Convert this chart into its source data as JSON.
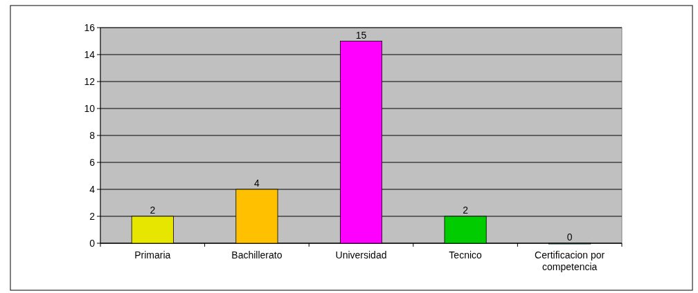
{
  "chart_data": {
    "type": "bar",
    "categories": [
      "Primaria",
      "Bachillerato",
      "Universidad",
      "Tecnico",
      "Certificacion por competencia"
    ],
    "values": [
      2,
      4,
      15,
      2,
      0
    ],
    "colors": [
      "#e6e600",
      "#ffc000",
      "#ff00ff",
      "#00cc00",
      "#33cccc"
    ],
    "ylim": [
      0,
      16
    ],
    "yticks": [
      0,
      2,
      4,
      6,
      8,
      10,
      12,
      14,
      16
    ],
    "grid": "y",
    "data_labels": true
  }
}
